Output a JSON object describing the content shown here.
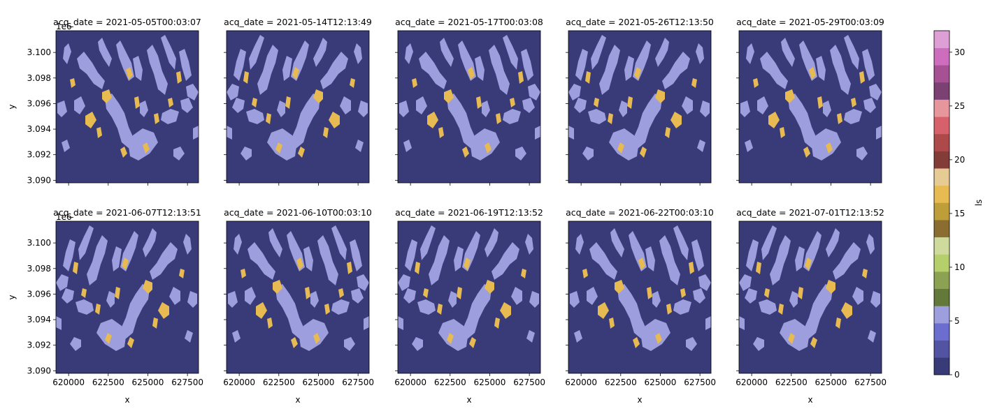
{
  "chart_data": {
    "type": "heatmap",
    "layout": {
      "rows": 2,
      "cols": 5,
      "sharex": true,
      "sharey": true
    },
    "panel_titles": [
      "acq_date = 2021-05-05T00:03:07",
      "acq_date = 2021-05-14T12:13:49",
      "acq_date = 2021-05-17T00:03:08",
      "acq_date = 2021-05-26T12:13:50",
      "acq_date = 2021-05-29T00:03:09",
      "acq_date = 2021-06-07T12:13:51",
      "acq_date = 2021-06-10T00:03:10",
      "acq_date = 2021-06-19T12:13:52",
      "acq_date = 2021-06-22T00:03:10",
      "acq_date = 2021-07-01T12:13:52"
    ],
    "xlabel": "x",
    "ylabel": "y",
    "y_offset_label": "1e6",
    "x_range": [
      619200,
      628200
    ],
    "y_range": [
      3.0898,
      3.1017
    ],
    "x_ticks": [
      620000,
      622500,
      625000,
      627500
    ],
    "x_tick_labels": [
      "620000",
      "622500",
      "625000",
      "627500"
    ],
    "y_ticks": [
      3.09,
      3.092,
      3.094,
      3.096,
      3.098,
      3.1
    ],
    "y_tick_labels": [
      "3.090",
      "3.092",
      "3.094",
      "3.096",
      "3.098",
      "3.100"
    ],
    "colorbar": {
      "label": "ls",
      "range": [
        0,
        32
      ],
      "ticks": [
        0,
        5,
        10,
        15,
        20,
        25,
        30
      ],
      "tick_labels": [
        "0",
        "5",
        "10",
        "15",
        "20",
        "25",
        "30"
      ],
      "colormap": "tab20b",
      "band_colors": [
        "#393b79",
        "#5254a3",
        "#6b6ecf",
        "#9c9ede",
        "#637939",
        "#8ca252",
        "#b5cf6b",
        "#cedb9c",
        "#8c6d31",
        "#bd9e39",
        "#e7ba52",
        "#e7cb94",
        "#843c39",
        "#ad494a",
        "#d6616b",
        "#e7969c",
        "#7b4173",
        "#a55194",
        "#ce6dbd",
        "#de9ed6"
      ]
    },
    "classes_present": [
      {
        "value": 0,
        "color": "#393b79"
      },
      {
        "value": 5,
        "color": "#9c9ede"
      },
      {
        "value": 16,
        "color": "#e7ba52"
      }
    ]
  }
}
